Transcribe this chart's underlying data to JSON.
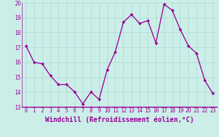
{
  "x": [
    0,
    1,
    2,
    3,
    4,
    5,
    6,
    7,
    8,
    9,
    10,
    11,
    12,
    13,
    14,
    15,
    16,
    17,
    18,
    19,
    20,
    21,
    22,
    23
  ],
  "y": [
    17.1,
    16.0,
    15.9,
    15.1,
    14.5,
    14.5,
    14.0,
    13.2,
    14.0,
    13.5,
    15.5,
    16.7,
    18.7,
    19.2,
    18.6,
    18.8,
    17.3,
    19.9,
    19.5,
    18.2,
    17.1,
    16.6,
    14.8,
    13.9
  ],
  "line_color": "#990099",
  "marker": "D",
  "marker_size": 2,
  "bg_color": "#cceee8",
  "grid_color": "#aad8d0",
  "xlabel": "Windchill (Refroidissement éolien,°C)",
  "ylim": [
    13,
    20
  ],
  "xlim": [
    -0.5,
    23.5
  ],
  "yticks": [
    13,
    14,
    15,
    16,
    17,
    18,
    19,
    20
  ],
  "xticks": [
    0,
    1,
    2,
    3,
    4,
    5,
    6,
    7,
    8,
    9,
    10,
    11,
    12,
    13,
    14,
    15,
    16,
    17,
    18,
    19,
    20,
    21,
    22,
    23
  ],
  "tick_color": "#990099",
  "tick_label_fontsize": 5.5,
  "xlabel_fontsize": 7.0,
  "line_width": 1.0
}
